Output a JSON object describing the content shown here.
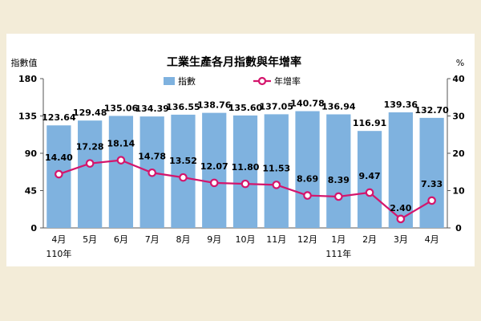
{
  "chart_data": {
    "type": "bar+line",
    "title": "工業生產各月指數與年增率",
    "left_axis_title": "指數值",
    "right_axis_title": "%",
    "categories": [
      "4月",
      "5月",
      "6月",
      "7月",
      "8月",
      "9月",
      "10月",
      "11月",
      "12月",
      "1月",
      "2月",
      "3月",
      "4月"
    ],
    "year_labels": [
      {
        "index": 0,
        "label": "110年"
      },
      {
        "index": 9,
        "label": "111年"
      }
    ],
    "bar_series": {
      "name": "指數",
      "color": "#7fb2df",
      "values": [
        123.64,
        129.48,
        135.06,
        134.39,
        136.55,
        138.76,
        135.6,
        137.05,
        140.78,
        136.94,
        116.91,
        139.36,
        132.7
      ],
      "labels": [
        "123.64",
        "129.48",
        "135.06",
        "134.39",
        "136.55",
        "138.76",
        "135.60",
        "137.05",
        "140.78",
        "136.94",
        "116.91",
        "139.36",
        "132.70"
      ]
    },
    "line_series": {
      "name": "年增率",
      "color": "#d4156c",
      "values": [
        14.4,
        17.28,
        18.14,
        14.78,
        13.52,
        12.07,
        11.8,
        11.53,
        8.69,
        8.39,
        9.47,
        2.4,
        7.33
      ],
      "labels": [
        "14.40",
        "17.28",
        "18.14",
        "14.78",
        "13.52",
        "12.07",
        "11.80",
        "11.53",
        "8.69",
        "8.39",
        "9.47",
        "2.40",
        "7.33"
      ]
    },
    "left_axis": {
      "min": 0,
      "max": 180,
      "ticks": [
        "0",
        "45",
        "90",
        "135",
        "180"
      ]
    },
    "right_axis": {
      "min": 0,
      "max": 40,
      "ticks": [
        "0",
        "10",
        "20",
        "30",
        "40"
      ]
    },
    "grid": false,
    "legend_position": "top-center"
  }
}
